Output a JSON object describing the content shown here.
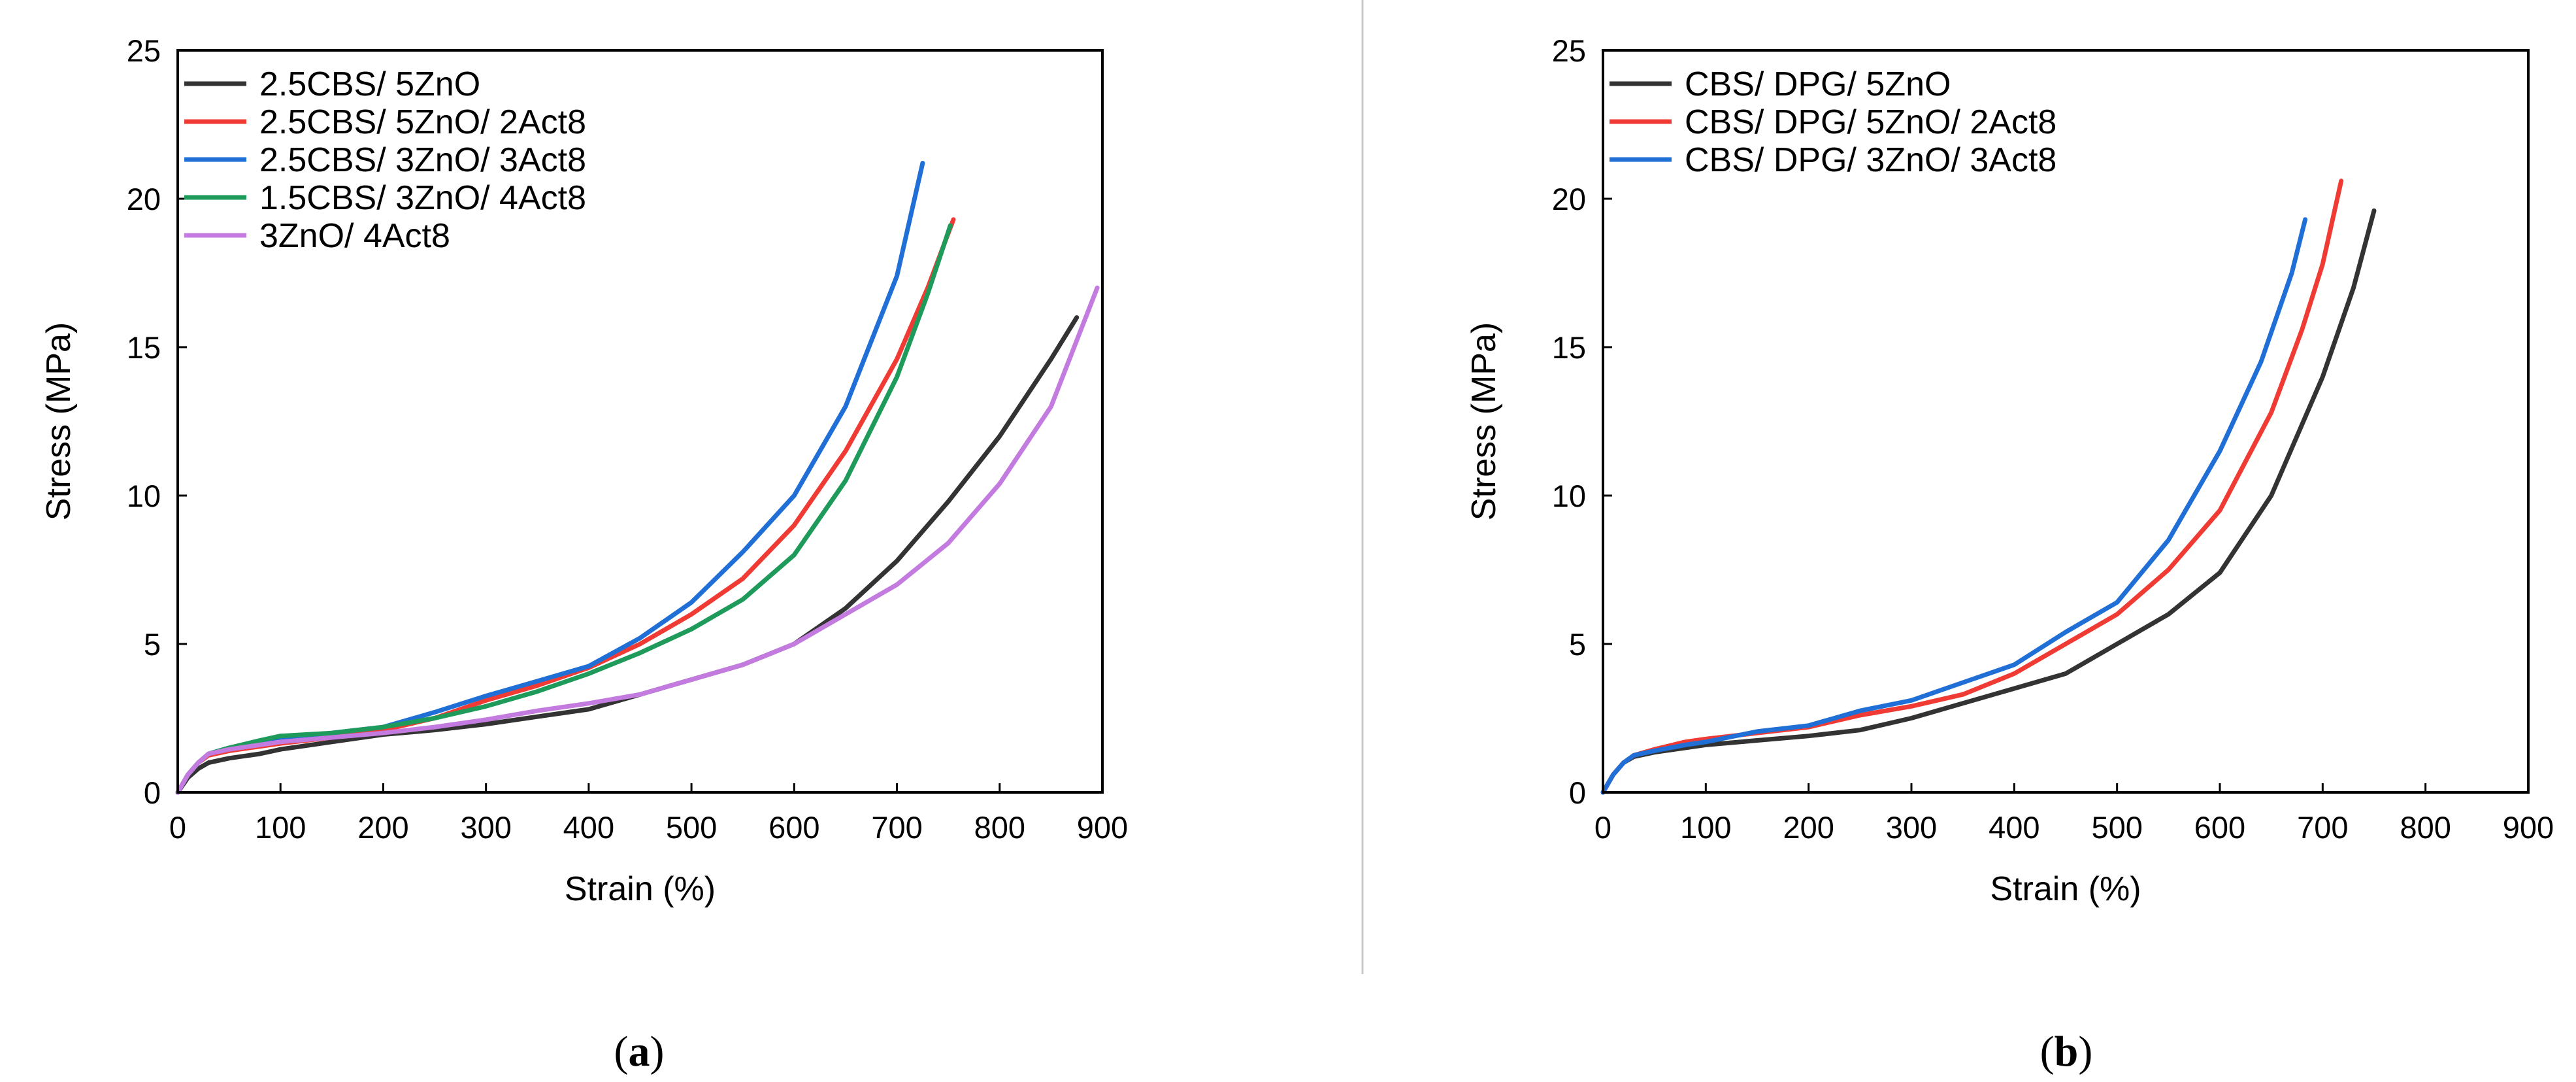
{
  "chart_data": [
    {
      "type": "line",
      "panel_label": "a",
      "caption_open": "(",
      "caption_close": ")",
      "xlabel": "Strain (%)",
      "ylabel": "Stress (MPa)",
      "xlim": [
        0,
        900
      ],
      "ylim": [
        0,
        25
      ],
      "xticks": [
        0,
        100,
        200,
        300,
        400,
        500,
        600,
        700,
        800,
        900
      ],
      "yticks": [
        0,
        5,
        10,
        15,
        20,
        25
      ],
      "legend_position": "top-left",
      "series": [
        {
          "name": "2.5CBS/ 5ZnO",
          "color": "#333333",
          "x": [
            0,
            10,
            20,
            30,
            50,
            80,
            100,
            150,
            200,
            250,
            300,
            350,
            400,
            450,
            500,
            550,
            600,
            650,
            700,
            750,
            800,
            850,
            875
          ],
          "y": [
            0,
            0.5,
            0.8,
            1.0,
            1.15,
            1.3,
            1.45,
            1.7,
            1.95,
            2.1,
            2.3,
            2.55,
            2.8,
            3.3,
            3.8,
            4.3,
            5.0,
            6.2,
            7.8,
            9.8,
            12.0,
            14.6,
            16.0
          ]
        },
        {
          "name": "2.5CBS/ 5ZnO/ 2Act8",
          "color": "#ef3b34",
          "x": [
            0,
            10,
            20,
            30,
            50,
            80,
            100,
            150,
            200,
            250,
            300,
            350,
            400,
            450,
            500,
            550,
            600,
            650,
            700,
            730,
            755
          ],
          "y": [
            0,
            0.6,
            1.0,
            1.25,
            1.4,
            1.55,
            1.65,
            1.85,
            2.1,
            2.5,
            3.1,
            3.6,
            4.2,
            5.0,
            6.0,
            7.2,
            9.0,
            11.5,
            14.6,
            17.0,
            19.3
          ]
        },
        {
          "name": "2.5CBS/ 3ZnO/ 3Act8",
          "color": "#1f6fd6",
          "x": [
            0,
            10,
            20,
            30,
            50,
            80,
            100,
            150,
            200,
            250,
            300,
            350,
            400,
            450,
            500,
            550,
            600,
            650,
            700,
            725
          ],
          "y": [
            0,
            0.6,
            1.0,
            1.3,
            1.5,
            1.7,
            1.85,
            2.0,
            2.2,
            2.7,
            3.25,
            3.75,
            4.25,
            5.2,
            6.4,
            8.1,
            10.0,
            13.0,
            17.4,
            21.2
          ]
        },
        {
          "name": "1.5CBS/ 3ZnO/ 4Act8",
          "color": "#1e9b5a",
          "x": [
            0,
            10,
            20,
            30,
            50,
            80,
            100,
            150,
            200,
            250,
            300,
            350,
            400,
            450,
            500,
            550,
            600,
            650,
            700,
            730,
            752
          ],
          "y": [
            0,
            0.6,
            1.0,
            1.3,
            1.5,
            1.75,
            1.9,
            2.0,
            2.2,
            2.5,
            2.9,
            3.4,
            4.0,
            4.7,
            5.5,
            6.5,
            8.0,
            10.5,
            14.0,
            16.8,
            19.1
          ]
        },
        {
          "name": "3ZnO/ 4Act8",
          "color": "#c47be0",
          "x": [
            0,
            10,
            20,
            30,
            50,
            80,
            100,
            150,
            200,
            250,
            300,
            350,
            400,
            450,
            500,
            550,
            600,
            650,
            700,
            750,
            800,
            850,
            895
          ],
          "y": [
            0,
            0.6,
            1.0,
            1.3,
            1.45,
            1.6,
            1.7,
            1.85,
            2.0,
            2.2,
            2.45,
            2.75,
            3.0,
            3.3,
            3.8,
            4.3,
            5.0,
            6.0,
            7.0,
            8.4,
            10.4,
            13.0,
            17.0
          ]
        }
      ]
    },
    {
      "type": "line",
      "panel_label": "b",
      "caption_open": "(",
      "caption_close": ")",
      "xlabel": "Strain (%)",
      "ylabel": "Stress (MPa)",
      "xlim": [
        0,
        900
      ],
      "ylim": [
        0,
        25
      ],
      "xticks": [
        0,
        100,
        200,
        300,
        400,
        500,
        600,
        700,
        800,
        900
      ],
      "yticks": [
        0,
        5,
        10,
        15,
        20,
        25
      ],
      "legend_position": "top-left",
      "series": [
        {
          "name": "CBS/ DPG/ 5ZnO",
          "color": "#333333",
          "x": [
            0,
            10,
            20,
            30,
            50,
            80,
            100,
            150,
            200,
            250,
            300,
            350,
            400,
            450,
            500,
            550,
            600,
            650,
            700,
            730,
            750
          ],
          "y": [
            0,
            0.6,
            1.0,
            1.2,
            1.35,
            1.5,
            1.6,
            1.75,
            1.9,
            2.1,
            2.5,
            3.0,
            3.5,
            4.0,
            5.0,
            6.0,
            7.4,
            10.0,
            14.0,
            17.0,
            19.6
          ]
        },
        {
          "name": "CBS/ DPG/ 5ZnO/ 2Act8",
          "color": "#ef3b34",
          "x": [
            0,
            10,
            20,
            30,
            50,
            80,
            100,
            150,
            200,
            250,
            300,
            350,
            400,
            450,
            500,
            550,
            600,
            650,
            680,
            700,
            718
          ],
          "y": [
            0,
            0.6,
            1.0,
            1.25,
            1.45,
            1.7,
            1.8,
            2.0,
            2.2,
            2.6,
            2.9,
            3.3,
            4.0,
            5.0,
            6.0,
            7.5,
            9.5,
            12.8,
            15.6,
            17.8,
            20.6
          ]
        },
        {
          "name": "CBS/ DPG/ 3ZnO/ 3Act8",
          "color": "#1f6fd6",
          "x": [
            0,
            10,
            20,
            30,
            50,
            80,
            100,
            150,
            200,
            250,
            300,
            350,
            400,
            450,
            500,
            550,
            600,
            640,
            670,
            683
          ],
          "y": [
            0,
            0.6,
            1.0,
            1.25,
            1.4,
            1.6,
            1.7,
            2.05,
            2.25,
            2.75,
            3.1,
            3.7,
            4.3,
            5.4,
            6.4,
            8.5,
            11.5,
            14.5,
            17.5,
            19.3
          ]
        }
      ]
    }
  ]
}
